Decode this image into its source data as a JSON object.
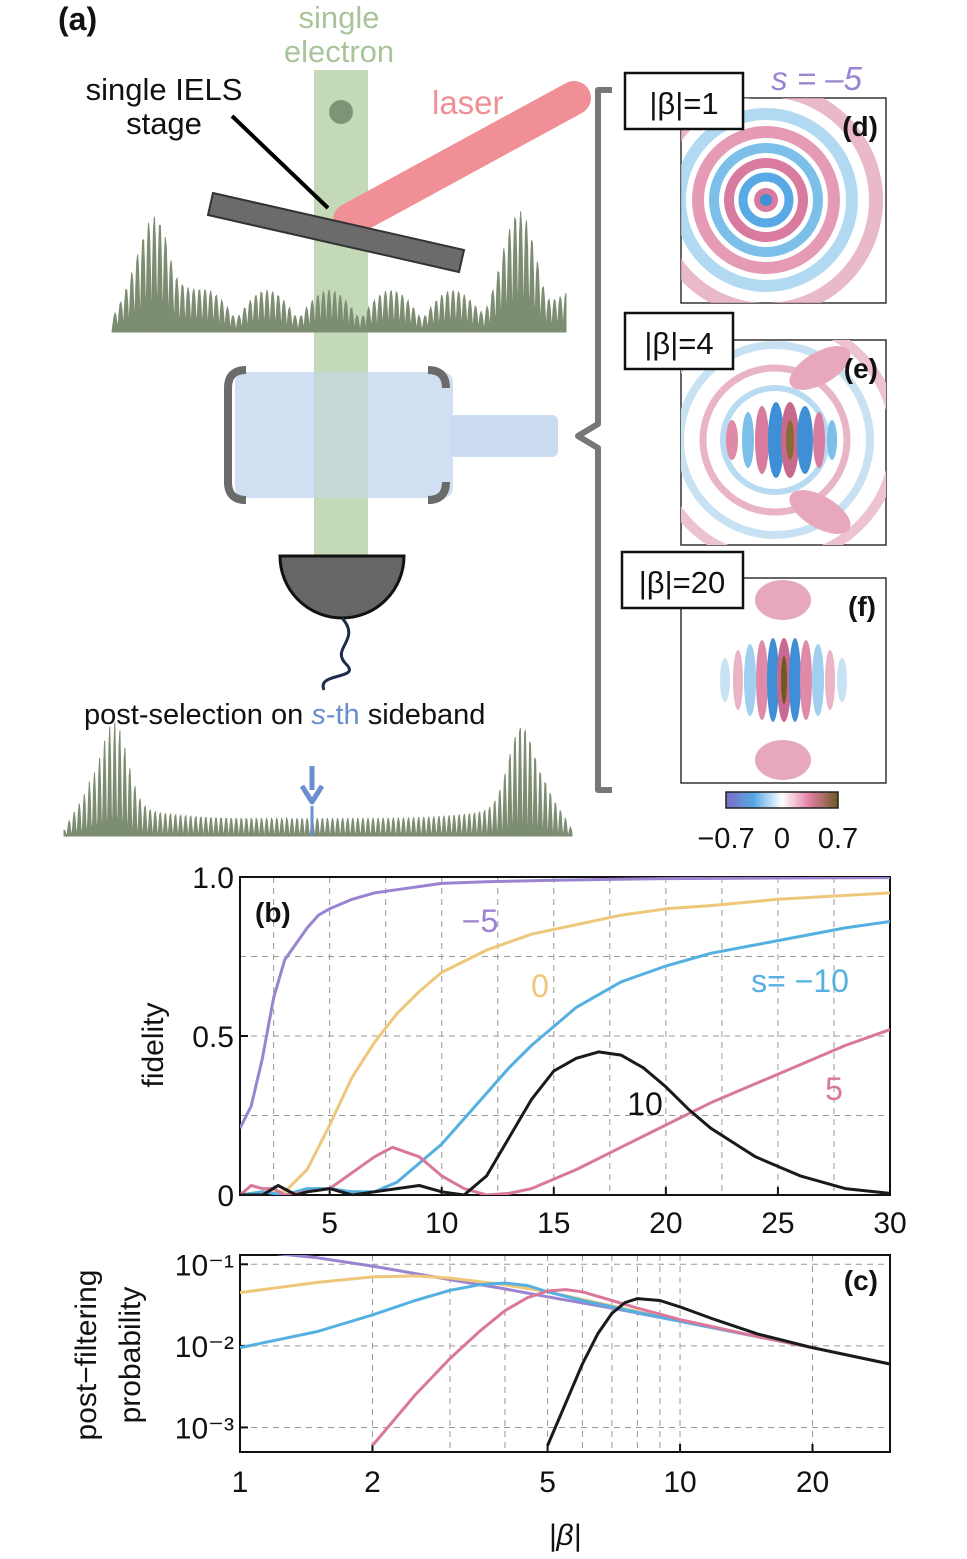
{
  "schematic": {
    "panel_label": "(a)",
    "electron_label_line1": "single",
    "electron_label_line2": "electron",
    "stage_label_line1": "single IELS",
    "stage_label_line2": "stage",
    "laser_label": "laser",
    "postselect_prefix": "post-selection on ",
    "postselect_s": "s",
    "postselect_th": "-th",
    "postselect_suffix": " sideband",
    "colors": {
      "electron_beam": "#b9d2ac",
      "laser": "#f08f95",
      "plate": "#6b6b6b",
      "cavity": "#cbdcf1",
      "detector": "#666666",
      "spectrum": "#7d8d72",
      "arrow": "#6a8fcf",
      "cable": "#1f2b4a"
    }
  },
  "wigner": {
    "s_label": "s = –5",
    "panels": [
      {
        "tag": "(d)",
        "beta": "|β|=1"
      },
      {
        "tag": "(e)",
        "beta": "|β|=4"
      },
      {
        "tag": "(f)",
        "beta": "|β|=20"
      }
    ],
    "colorbar": {
      "ticks": [
        "−0.7",
        "0",
        "0.7"
      ],
      "range": [
        -0.7,
        0.7
      ],
      "stops": [
        "#7b6bc4",
        "#58a9e6",
        "#ffffff",
        "#e17fa1",
        "#6e5a20"
      ]
    }
  },
  "chart_data": [
    {
      "type": "line",
      "panel_label": "(b)",
      "ylabel": "fidelity",
      "xlabel": "",
      "xlim": [
        1,
        30
      ],
      "ylim": [
        0,
        1
      ],
      "x_ticks": [
        "5",
        "10",
        "15",
        "20",
        "25",
        "30"
      ],
      "y_ticks": [
        "0",
        "0.5",
        "1.0"
      ],
      "annotations": [
        "−5",
        "0",
        "s= −10",
        "10",
        "5"
      ],
      "series": [
        {
          "name": "s=-5",
          "color": "#9a84d0",
          "x": [
            1,
            1.5,
            2,
            2.5,
            3,
            3.5,
            4,
            4.5,
            5,
            6,
            7,
            8,
            10,
            12,
            15,
            20,
            25,
            30
          ],
          "y": [
            0.21,
            0.28,
            0.43,
            0.62,
            0.74,
            0.79,
            0.84,
            0.88,
            0.9,
            0.93,
            0.95,
            0.96,
            0.98,
            0.985,
            0.99,
            0.995,
            0.997,
            0.998
          ]
        },
        {
          "name": "s=0",
          "color": "#efc77b",
          "x": [
            1,
            2,
            3,
            4,
            5,
            6,
            7,
            8,
            9,
            10,
            12,
            14,
            16,
            18,
            20,
            22,
            25,
            30
          ],
          "y": [
            0,
            0.01,
            0.01,
            0.08,
            0.22,
            0.37,
            0.48,
            0.57,
            0.64,
            0.7,
            0.77,
            0.82,
            0.85,
            0.88,
            0.9,
            0.91,
            0.93,
            0.95
          ]
        },
        {
          "name": "s=-10",
          "color": "#55b0e2",
          "x": [
            1,
            2,
            3,
            4,
            5,
            6,
            7,
            8,
            9,
            10,
            11,
            12,
            13,
            14,
            15,
            16,
            18,
            20,
            22,
            25,
            28,
            30
          ],
          "y": [
            0,
            0.01,
            0,
            0.02,
            0.02,
            0.01,
            0.01,
            0.04,
            0.1,
            0.16,
            0.24,
            0.32,
            0.4,
            0.47,
            0.53,
            0.59,
            0.67,
            0.72,
            0.76,
            0.8,
            0.84,
            0.86
          ]
        },
        {
          "name": "s=5",
          "color": "#d9789b",
          "x": [
            1,
            1.5,
            2,
            2.5,
            3,
            4,
            5,
            6,
            7,
            7.8,
            9,
            10,
            11,
            12,
            13,
            14,
            15,
            16,
            18,
            20,
            22,
            25,
            28,
            30
          ],
          "y": [
            0,
            0.03,
            0.02,
            0.02,
            0,
            0.01,
            0.02,
            0.07,
            0.12,
            0.15,
            0.12,
            0.06,
            0.02,
            0,
            0.005,
            0.02,
            0.05,
            0.08,
            0.15,
            0.22,
            0.29,
            0.38,
            0.47,
            0.52
          ]
        },
        {
          "name": "s=10",
          "color": "#1a1a1a",
          "x": [
            1,
            2,
            2.7,
            3.5,
            4,
            5,
            6,
            7,
            8,
            9,
            10,
            11,
            12,
            13,
            14,
            15,
            16,
            17,
            18,
            19,
            20,
            21,
            22,
            24,
            26,
            28,
            30
          ],
          "y": [
            0,
            0,
            0.03,
            0,
            0.01,
            0.02,
            0,
            0.01,
            0.02,
            0.03,
            0.01,
            0,
            0.06,
            0.18,
            0.3,
            0.39,
            0.43,
            0.45,
            0.44,
            0.4,
            0.34,
            0.27,
            0.21,
            0.12,
            0.06,
            0.02,
            0.005
          ]
        }
      ]
    },
    {
      "type": "line",
      "panel_label": "(c)",
      "ylabel_line1": "post−filtering",
      "ylabel_line2": "probability",
      "xlabel": "|β|",
      "xscale": "log",
      "yscale": "log",
      "xlim": [
        1,
        30
      ],
      "ylim": [
        0.0005,
        0.13
      ],
      "x_ticks": [
        "1",
        "2",
        "5",
        "10",
        "20"
      ],
      "y_ticks": [
        "10⁻³",
        "10⁻²",
        "10⁻¹"
      ],
      "series": [
        {
          "name": "s=-5",
          "color": "#9a84d0",
          "x": [
            1,
            1.5,
            2,
            3,
            4,
            5,
            7,
            10,
            15,
            20,
            30
          ],
          "y": [
            0.15,
            0.12,
            0.095,
            0.065,
            0.05,
            0.04,
            0.029,
            0.02,
            0.013,
            0.0095,
            0.006
          ]
        },
        {
          "name": "s=0",
          "color": "#efc77b",
          "x": [
            1,
            1.5,
            2,
            2.5,
            3,
            4,
            5,
            7,
            10,
            15,
            20,
            30
          ],
          "y": [
            0.045,
            0.06,
            0.07,
            0.072,
            0.068,
            0.056,
            0.046,
            0.031,
            0.02,
            0.013,
            0.0095,
            0.006
          ]
        },
        {
          "name": "s=-10",
          "color": "#55b0e2",
          "x": [
            1,
            1.5,
            2,
            2.5,
            3,
            3.5,
            4,
            4.5,
            5,
            6,
            7,
            10,
            15,
            20,
            30
          ],
          "y": [
            0.0095,
            0.015,
            0.024,
            0.036,
            0.048,
            0.056,
            0.059,
            0.055,
            0.046,
            0.036,
            0.03,
            0.02,
            0.013,
            0.0095,
            0.006
          ]
        },
        {
          "name": "s=5",
          "color": "#d9789b",
          "x": [
            2,
            2.5,
            3,
            3.5,
            4,
            4.5,
            5,
            5.5,
            6,
            7,
            8,
            10,
            15,
            20,
            30
          ],
          "y": [
            0.0006,
            0.0025,
            0.007,
            0.015,
            0.027,
            0.039,
            0.047,
            0.049,
            0.046,
            0.036,
            0.029,
            0.021,
            0.013,
            0.0095,
            0.006
          ]
        },
        {
          "name": "s=10",
          "color": "#1a1a1a",
          "x": [
            5,
            5.5,
            6,
            6.5,
            7,
            7.5,
            8,
            9,
            10,
            12,
            15,
            20,
            30
          ],
          "y": [
            0.0006,
            0.002,
            0.006,
            0.014,
            0.025,
            0.034,
            0.038,
            0.036,
            0.03,
            0.021,
            0.014,
            0.0095,
            0.006
          ]
        }
      ]
    }
  ]
}
